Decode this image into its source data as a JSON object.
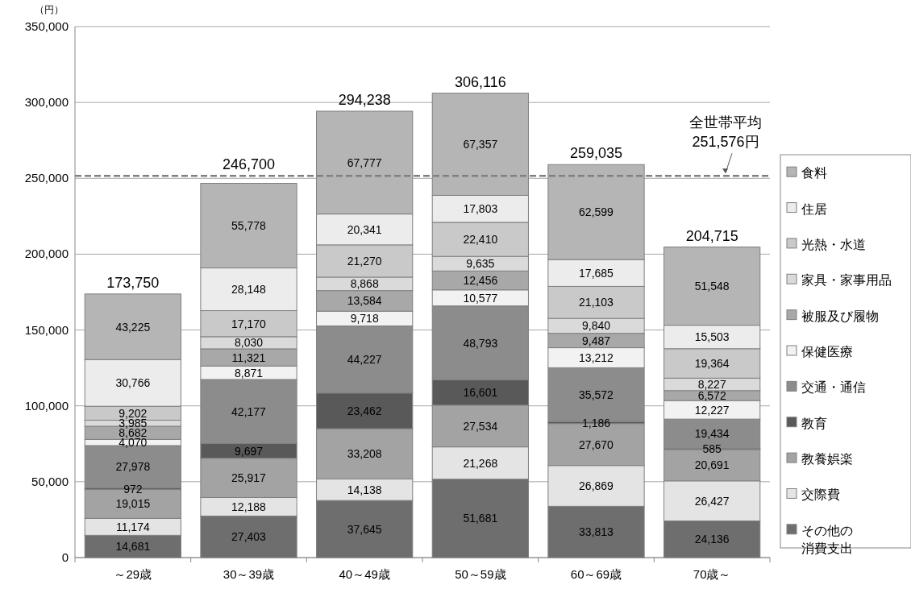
{
  "chart_data": {
    "type": "bar",
    "stacked": true,
    "ylabel": "（円）",
    "categories": [
      "～29歳",
      "30～39歳",
      "40～49歳",
      "50～59歳",
      "60～69歳",
      "70歳～"
    ],
    "series": [
      {
        "name": "その他の消費支出",
        "color": "#6e6e6e",
        "values": [
          14681,
          27403,
          37645,
          51681,
          33813,
          24136
        ],
        "value_labels": [
          "14,681",
          "27,403",
          "37,645",
          "51,681",
          "33,813",
          "24,136"
        ]
      },
      {
        "name": "交際費",
        "color": "#e4e4e4",
        "values": [
          11174,
          12188,
          14138,
          21268,
          26869,
          26427
        ],
        "value_labels": [
          "11,174",
          "12,188",
          "14,138",
          "21,268",
          "26,869",
          "26,427"
        ]
      },
      {
        "name": "教養娯楽",
        "color": "#a3a3a3",
        "values": [
          19015,
          25917,
          33208,
          27534,
          27670,
          20691
        ],
        "value_labels": [
          "19,015",
          "25,917",
          "33,208",
          "27,534",
          "27,670",
          "20,691"
        ]
      },
      {
        "name": "教育",
        "color": "#595959",
        "values": [
          972,
          9697,
          23462,
          16601,
          1186,
          585
        ],
        "value_labels": [
          "972",
          "9,697",
          "23,462",
          "16,601",
          "1,186",
          "585"
        ]
      },
      {
        "name": "交通・通信",
        "color": "#8c8c8c",
        "values": [
          27978,
          42177,
          44227,
          48793,
          35572,
          19434
        ],
        "value_labels": [
          "27,978",
          "42,177",
          "44,227",
          "48,793",
          "35,572",
          "19,434"
        ]
      },
      {
        "name": "保健医療",
        "color": "#f2f2f2",
        "values": [
          4070,
          8871,
          9718,
          10577,
          13212,
          12227
        ],
        "value_labels": [
          "4,070",
          "8,871",
          "9,718",
          "10,577",
          "13,212",
          "12,227"
        ]
      },
      {
        "name": "被服及び履物",
        "color": "#a8a8a8",
        "values": [
          8682,
          11321,
          13584,
          12456,
          9487,
          6572
        ],
        "value_labels": [
          "8,682",
          "11,321",
          "13,584",
          "12,456",
          "9,487",
          "6,572"
        ]
      },
      {
        "name": "家具・家事用品",
        "color": "#dadada",
        "values": [
          3985,
          8030,
          8868,
          9635,
          9840,
          8227
        ],
        "value_labels": [
          "3,985",
          "8,030",
          "8,868",
          "9,635",
          "9,840",
          "8,227"
        ]
      },
      {
        "name": "光熱・水道",
        "color": "#c9c9c9",
        "values": [
          9202,
          17170,
          21270,
          22410,
          21103,
          19364
        ],
        "value_labels": [
          "9,202",
          "17,170",
          "21,270",
          "22,410",
          "21,103",
          "19,364"
        ]
      },
      {
        "name": "住居",
        "color": "#ececec",
        "values": [
          30766,
          28148,
          20341,
          17803,
          17685,
          15503
        ],
        "value_labels": [
          "30,766",
          "28,148",
          "20,341",
          "17,803",
          "17,685",
          "15,503"
        ]
      },
      {
        "name": "食料",
        "color": "#b5b5b5",
        "values": [
          43225,
          55778,
          67777,
          67357,
          62599,
          51548
        ],
        "value_labels": [
          "43,225",
          "55,778",
          "67,777",
          "67,357",
          "62,599",
          "51,548"
        ]
      }
    ],
    "totals": [
      "173,750",
      "246,700",
      "294,238",
      "306,116",
      "259,035",
      "204,715"
    ],
    "ylim": [
      0,
      350000
    ],
    "yticks": [
      0,
      {
        "value": 50000,
        "label": "50,000"
      },
      {
        "value": 100000,
        "label": "100,000"
      },
      {
        "value": 150000,
        "label": "150,000"
      },
      {
        "value": 200000,
        "label": "200,000"
      },
      {
        "value": 250000,
        "label": "250,000"
      },
      {
        "value": 300000,
        "label": "300,000"
      },
      {
        "value": 350000,
        "label": "350,000"
      }
    ],
    "ref_lines": [
      {
        "axis": "y",
        "value": 251576,
        "label": "全世帯平均\n251,576円",
        "color": "#808080",
        "line_style": "dashed"
      }
    ],
    "grid": "y",
    "legend": "right"
  }
}
